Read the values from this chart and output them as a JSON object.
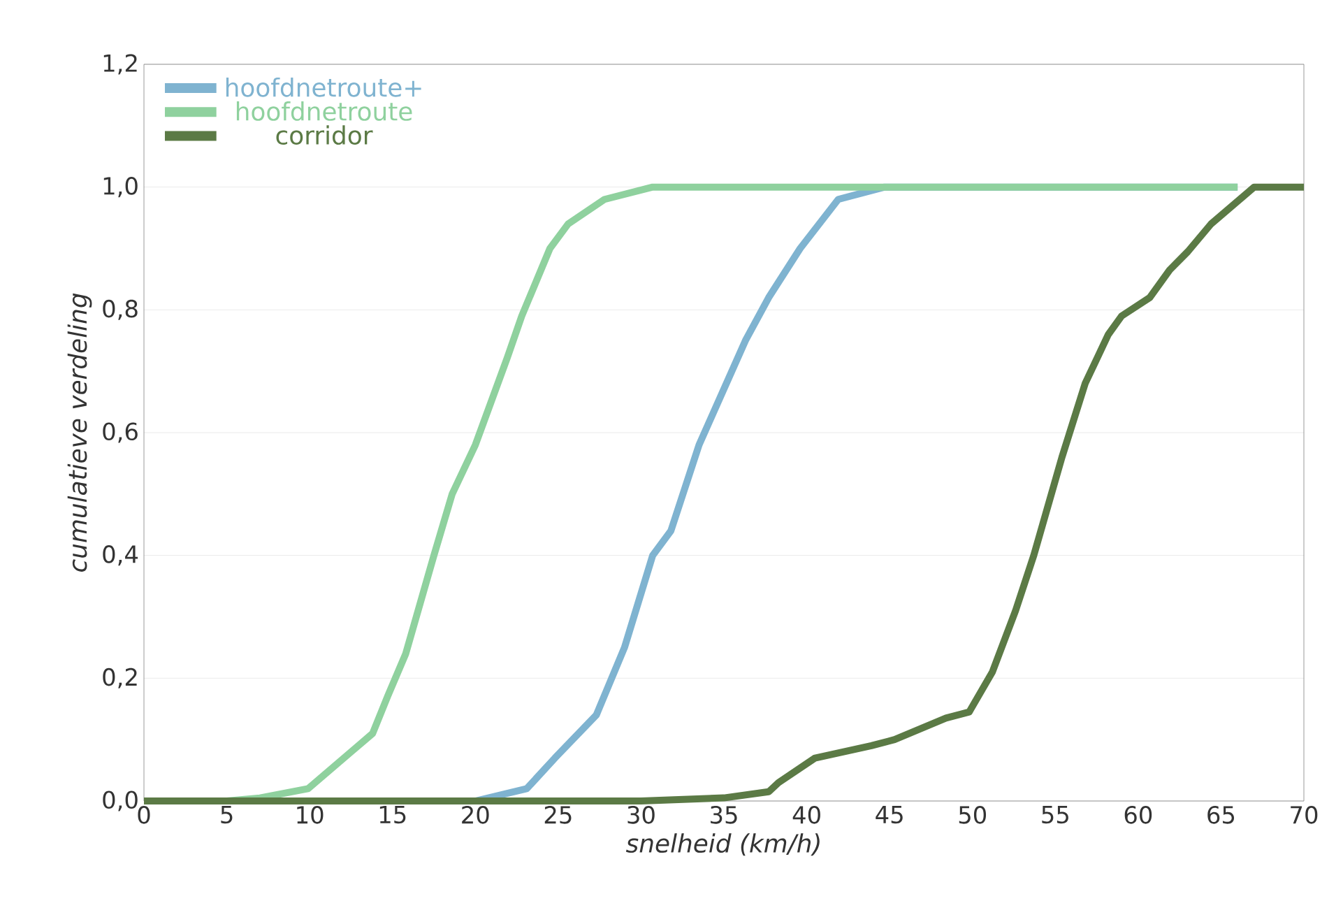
{
  "chart_data": {
    "type": "line",
    "xlabel": "snelheid (km/h)",
    "ylabel": "cumulatieve verdeling",
    "xlim": [
      0,
      70
    ],
    "ylim": [
      0,
      1.2
    ],
    "xticks": [
      0,
      5,
      10,
      15,
      20,
      25,
      30,
      35,
      40,
      45,
      50,
      55,
      60,
      65,
      70
    ],
    "yticks": [
      {
        "value": 0,
        "label": "0,0"
      },
      {
        "value": 0.2,
        "label": "0,2"
      },
      {
        "value": 0.4,
        "label": "0,4"
      },
      {
        "value": 0.6,
        "label": "0,6"
      },
      {
        "value": 0.8,
        "label": "0,8"
      },
      {
        "value": 1.0,
        "label": "1,0"
      },
      {
        "value": 1.2,
        "label": "1,2"
      }
    ],
    "grid": "y",
    "legend": "top left",
    "marker": "none",
    "line_style": "solid",
    "series": [
      {
        "name": "hoofdnetroute+",
        "color": "#7fb3d0",
        "x": [
          0,
          20,
          23.1,
          24.8,
          27.3,
          29.0,
          30.7,
          31.8,
          33.5,
          36.3,
          37.7,
          39.6,
          41.9,
          44.7,
          66
        ],
        "values": [
          0,
          0,
          0.02,
          0.07,
          0.14,
          0.25,
          0.4,
          0.44,
          0.58,
          0.75,
          0.82,
          0.9,
          0.98,
          1.0,
          1.0
        ]
      },
      {
        "name": "hoofdnetroute",
        "color": "#8fd19e",
        "x": [
          0,
          5,
          7,
          9.9,
          13.8,
          14.7,
          15.8,
          17.5,
          18.6,
          20.0,
          21.9,
          22.8,
          24.5,
          25.6,
          27.8,
          30.7,
          66
        ],
        "values": [
          0,
          0,
          0.005,
          0.02,
          0.11,
          0.17,
          0.24,
          0.4,
          0.5,
          0.58,
          0.72,
          0.79,
          0.9,
          0.94,
          0.98,
          1.0,
          1.0
        ]
      },
      {
        "name": "corridor",
        "color": "#5b7a45",
        "x": [
          0,
          30,
          35,
          37.7,
          38.3,
          40.5,
          43.9,
          45.3,
          48.4,
          49.8,
          51.2,
          52.6,
          53.7,
          55.4,
          56.8,
          58.2,
          59.0,
          60.7,
          61.9,
          63.0,
          64.4,
          67.0,
          70
        ],
        "values": [
          0,
          0,
          0.005,
          0.015,
          0.03,
          0.07,
          0.09,
          0.1,
          0.135,
          0.145,
          0.21,
          0.31,
          0.4,
          0.56,
          0.68,
          0.76,
          0.79,
          0.82,
          0.865,
          0.895,
          0.94,
          1.0,
          1.0
        ]
      }
    ]
  }
}
